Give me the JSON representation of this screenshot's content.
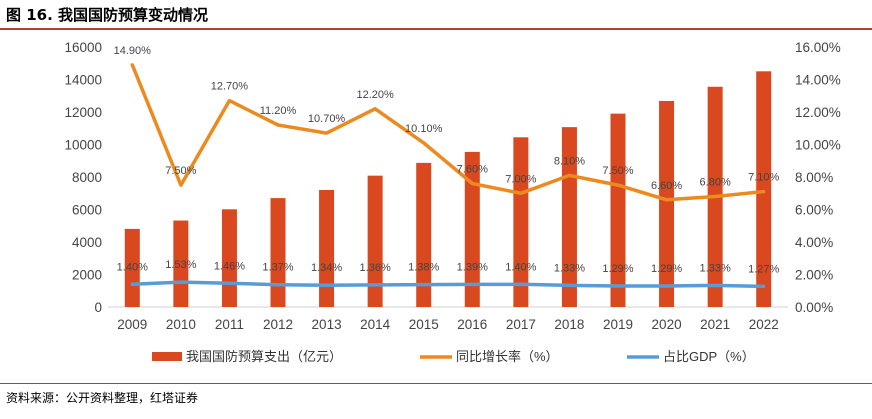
{
  "figure": {
    "title": "图 16. 我国国防预算变动情况",
    "source": "资料来源：公开资料整理，红塔证券"
  },
  "colors": {
    "bar": "#d9481e",
    "growth": "#ed8a1f",
    "gdp": "#5b9bd5",
    "accent": "#b5402a"
  },
  "chart_data": {
    "type": "bar",
    "categories": [
      "2009",
      "2010",
      "2011",
      "2012",
      "2013",
      "2014",
      "2015",
      "2016",
      "2017",
      "2018",
      "2019",
      "2020",
      "2021",
      "2022"
    ],
    "series": [
      {
        "name": "我国国防预算支出（亿元）",
        "type": "bar",
        "axis": "left",
        "values": [
          4807,
          5321,
          6012,
          6700,
          7202,
          8082,
          8869,
          9544,
          10444,
          11069,
          11899,
          12680,
          13553,
          14504
        ]
      },
      {
        "name": "同比增长率（%）",
        "type": "line",
        "axis": "right",
        "values": [
          14.9,
          7.5,
          12.7,
          11.2,
          10.7,
          12.2,
          10.1,
          7.6,
          7.0,
          8.1,
          7.5,
          6.6,
          6.8,
          7.1
        ],
        "labels": [
          "14.90%",
          "7.50%",
          "12.70%",
          "11.20%",
          "10.70%",
          "12.20%",
          "10.10%",
          "7.60%",
          "7.00%",
          "8.10%",
          "7.50%",
          "6.60%",
          "6.80%",
          "7.10%"
        ]
      },
      {
        "name": "占比GDP（%）",
        "type": "line",
        "axis": "right",
        "values": [
          1.4,
          1.53,
          1.46,
          1.37,
          1.34,
          1.36,
          1.38,
          1.39,
          1.4,
          1.33,
          1.29,
          1.29,
          1.33,
          1.27
        ],
        "labels": [
          "1.40%",
          "1.53%",
          "1.46%",
          "1.37%",
          "1.34%",
          "1.36%",
          "1.38%",
          "1.39%",
          "1.40%",
          "1.33%",
          "1.29%",
          "1.29%",
          "1.33%",
          "1.27%"
        ]
      }
    ],
    "ylim_left": [
      0,
      16000
    ],
    "yticks_left": [
      "0",
      "2000",
      "4000",
      "6000",
      "8000",
      "10000",
      "12000",
      "14000",
      "16000"
    ],
    "ylim_right": [
      0,
      16
    ],
    "yticks_right": [
      "0.00%",
      "2.00%",
      "4.00%",
      "6.00%",
      "8.00%",
      "10.00%",
      "12.00%",
      "14.00%",
      "16.00%"
    ],
    "legend_position": "bottom",
    "grid": false
  }
}
